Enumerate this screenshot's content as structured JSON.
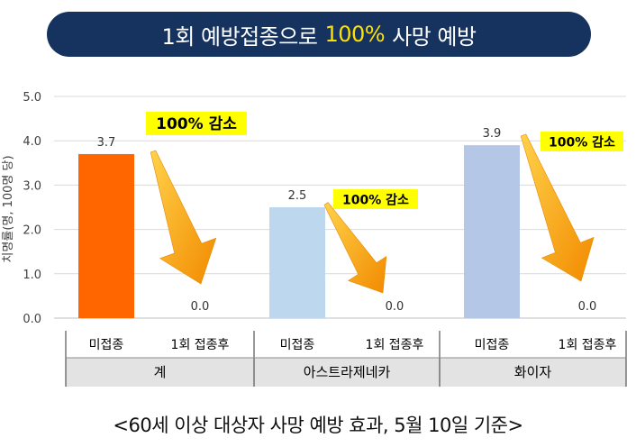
{
  "title": {
    "prefix": "1회 예방접종으로",
    "highlight": "100%",
    "suffix": "사망 예방"
  },
  "caption": "<60세 이상 대상자 사망 예방 효과, 5월 10일 기준>",
  "colors": {
    "banner": "#16325f",
    "highlight_text": "#ffe100",
    "annotation_bg": "#ffff00",
    "arrow_start": "#ffd24a",
    "arrow_end": "#f28a00",
    "group_band": "#e3e3e3"
  },
  "chart_data": {
    "type": "bar",
    "ylabel": "치명률(명, 100명 당)",
    "ylim": [
      0,
      5
    ],
    "yticks": [
      "0.0",
      "1.0",
      "2.0",
      "3.0",
      "4.0",
      "5.0"
    ],
    "grid": true,
    "groups": [
      {
        "name": "계",
        "annotation": "100% 감소",
        "bars": [
          {
            "category": "미접종",
            "value": 3.7,
            "label": "3.7",
            "color": "#ff6600"
          },
          {
            "category": "1회 접종후",
            "value": 0.0,
            "label": "0.0",
            "color": "#ff6600"
          }
        ]
      },
      {
        "name": "아스트라제네카",
        "annotation": "100% 감소",
        "bars": [
          {
            "category": "미접종",
            "value": 2.5,
            "label": "2.5",
            "color": "#bdd7ee"
          },
          {
            "category": "1회 접종후",
            "value": 0.0,
            "label": "0.0",
            "color": "#bdd7ee"
          }
        ]
      },
      {
        "name": "화이자",
        "annotation": "100% 감소",
        "bars": [
          {
            "category": "미접종",
            "value": 3.9,
            "label": "3.9",
            "color": "#b4c7e7"
          },
          {
            "category": "1회 접종후",
            "value": 0.0,
            "label": "0.0",
            "color": "#b4c7e7"
          }
        ]
      }
    ]
  }
}
